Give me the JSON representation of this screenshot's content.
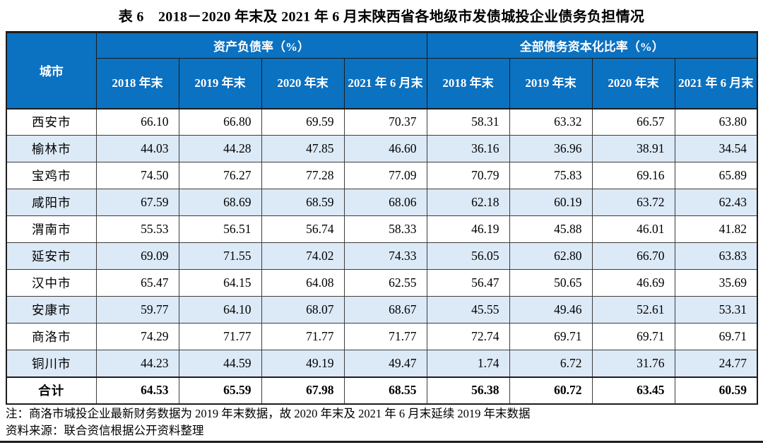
{
  "title": "表 6　2018－2020 年末及 2021 年 6 月末陕西省各地级市发债城投企业债务负担情况",
  "colors": {
    "header_blue": "#0b71c1",
    "row_shade": "#dce9f7",
    "border_dark": "#1c1c1c"
  },
  "table": {
    "corner_header": "城市",
    "groups": [
      {
        "label": "资产负债率（%）"
      },
      {
        "label": "全部债务资本化比率（%）"
      }
    ],
    "period_headers": [
      "2018 年末",
      "2019 年末",
      "2020 年末",
      "2021 年 6 月末"
    ],
    "rows": [
      {
        "city": "西安市",
        "values": [
          "66.10",
          "66.80",
          "69.59",
          "70.37",
          "58.31",
          "63.32",
          "66.57",
          "63.80"
        ]
      },
      {
        "city": "榆林市",
        "values": [
          "44.03",
          "44.28",
          "47.85",
          "46.60",
          "36.16",
          "36.96",
          "38.91",
          "34.54"
        ]
      },
      {
        "city": "宝鸡市",
        "values": [
          "74.50",
          "76.27",
          "77.28",
          "77.09",
          "70.79",
          "75.83",
          "69.16",
          "65.89"
        ]
      },
      {
        "city": "咸阳市",
        "values": [
          "67.59",
          "68.69",
          "68.59",
          "68.06",
          "62.18",
          "60.19",
          "63.72",
          "62.43"
        ]
      },
      {
        "city": "渭南市",
        "values": [
          "55.53",
          "56.51",
          "56.74",
          "58.33",
          "46.19",
          "45.88",
          "46.01",
          "41.82"
        ]
      },
      {
        "city": "延安市",
        "values": [
          "69.09",
          "71.55",
          "74.02",
          "74.33",
          "56.05",
          "62.80",
          "66.70",
          "63.83"
        ]
      },
      {
        "city": "汉中市",
        "values": [
          "65.47",
          "64.15",
          "64.08",
          "62.55",
          "56.47",
          "50.65",
          "46.69",
          "35.69"
        ]
      },
      {
        "city": "安康市",
        "values": [
          "59.77",
          "64.10",
          "68.07",
          "68.67",
          "45.55",
          "49.46",
          "52.61",
          "53.31"
        ]
      },
      {
        "city": "商洛市",
        "values": [
          "74.29",
          "71.77",
          "71.77",
          "71.77",
          "72.74",
          "69.71",
          "69.71",
          "69.71"
        ]
      },
      {
        "city": "铜川市",
        "values": [
          "44.23",
          "44.59",
          "49.19",
          "49.47",
          "1.74",
          "6.72",
          "31.76",
          "24.77"
        ]
      },
      {
        "city": "合计",
        "values": [
          "64.53",
          "65.59",
          "67.98",
          "68.55",
          "56.38",
          "60.72",
          "63.45",
          "60.59"
        ]
      }
    ]
  },
  "notes": [
    "注：商洛市城投企业最新财务数据为 2019 年末数据，故 2020 年末及 2021 年 6 月末延续 2019 年末数据",
    "资料来源：联合资信根据公开资料整理"
  ]
}
